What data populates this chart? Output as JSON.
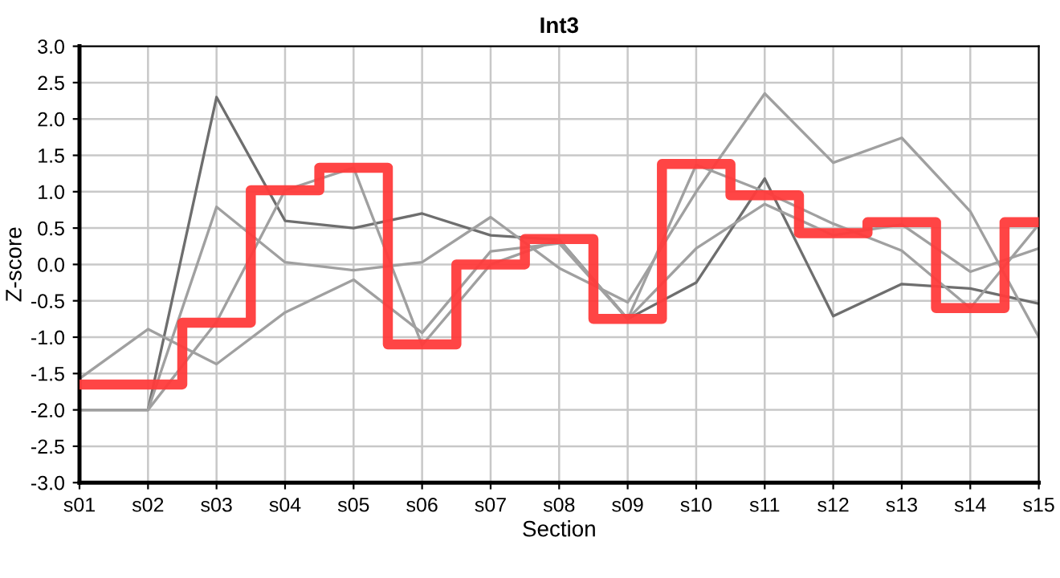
{
  "chart_data": {
    "type": "line",
    "title": "Int3",
    "xlabel": "Section",
    "ylabel": "Z-score",
    "categories": [
      "s01",
      "s02",
      "s03",
      "s04",
      "s05",
      "s06",
      "s07",
      "s08",
      "s09",
      "s10",
      "s11",
      "s12",
      "s13",
      "s14",
      "s15"
    ],
    "series": [
      {
        "color": "#6e6e6e",
        "values": [
          -2.0,
          -2.0,
          2.3,
          0.6,
          0.5,
          0.7,
          0.4,
          0.34,
          -0.75,
          -0.25,
          1.18,
          -0.71,
          -0.27,
          -0.33,
          -0.54
        ]
      },
      {
        "color": "#a0a0a0",
        "values": [
          -1.57,
          -0.89,
          -1.37,
          -0.66,
          -0.21,
          -0.94,
          0.18,
          0.29,
          -0.75,
          0.22,
          0.83,
          0.4,
          0.55,
          -0.1,
          0.22
        ]
      },
      {
        "color": "#a0a0a0",
        "values": [
          -2.0,
          -2.0,
          -0.79,
          1.02,
          1.33,
          -1.11,
          0.0,
          0.34,
          -0.75,
          1.37,
          1.0,
          0.56,
          0.19,
          -0.6,
          0.55
        ]
      },
      {
        "color": "#a0a0a0",
        "values": [
          -2.0,
          -2.0,
          0.79,
          0.03,
          -0.08,
          0.03,
          0.65,
          -0.05,
          -0.52,
          1.0,
          2.35,
          1.4,
          1.74,
          0.73,
          -1.0
        ]
      },
      {
        "type": "step",
        "color": "#ff3b3b",
        "values": [
          -1.65,
          -1.65,
          -0.8,
          1.02,
          1.33,
          -1.1,
          0.0,
          0.35,
          -0.75,
          1.38,
          0.95,
          0.43,
          0.58,
          -0.6,
          0.58
        ]
      }
    ],
    "ylim": [
      -3,
      3
    ],
    "yticks": [
      {
        "value": -3,
        "label": "-3.0"
      },
      {
        "value": -2.5,
        "label": "-2.5"
      },
      {
        "value": -2,
        "label": "-2.0"
      },
      {
        "value": -1.5,
        "label": "-1.5"
      },
      {
        "value": -1,
        "label": "-1.0"
      },
      {
        "value": -0.5,
        "label": "-0.5"
      },
      {
        "value": 0,
        "label": "0.0"
      },
      {
        "value": 0.5,
        "label": "0.5"
      },
      {
        "value": 1,
        "label": "1.0"
      },
      {
        "value": 1.5,
        "label": "1.5"
      },
      {
        "value": 2,
        "label": "2.0"
      },
      {
        "value": 2.5,
        "label": "2.5"
      },
      {
        "value": 3,
        "label": "3.0"
      }
    ],
    "grid": true
  }
}
